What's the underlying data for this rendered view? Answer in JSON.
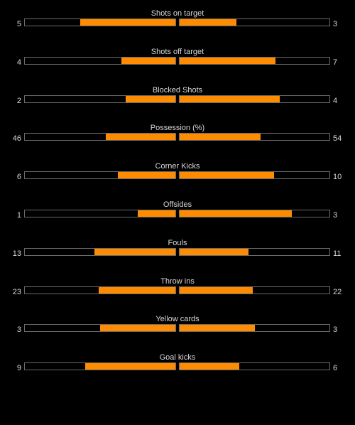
{
  "colors": {
    "background": "#000000",
    "bar_fill": "#ff8c00",
    "bar_border": "#6a6a6a",
    "text": "#d8d8d8"
  },
  "stats": [
    {
      "label": "Shots on target",
      "home": "5",
      "away": "3",
      "home_fill": 0.63,
      "away_fill": 0.38
    },
    {
      "label": "Shots off target",
      "home": "4",
      "away": "7",
      "home_fill": 0.36,
      "away_fill": 0.64
    },
    {
      "label": "Blocked Shots",
      "home": "2",
      "away": "4",
      "home_fill": 0.33,
      "away_fill": 0.67
    },
    {
      "label": "Possession (%)",
      "home": "46",
      "away": "54",
      "home_fill": 0.46,
      "away_fill": 0.54
    },
    {
      "label": "Corner Kicks",
      "home": "6",
      "away": "10",
      "home_fill": 0.38,
      "away_fill": 0.63
    },
    {
      "label": "Offsides",
      "home": "1",
      "away": "3",
      "home_fill": 0.25,
      "away_fill": 0.75
    },
    {
      "label": "Fouls",
      "home": "13",
      "away": "11",
      "home_fill": 0.54,
      "away_fill": 0.46
    },
    {
      "label": "Throw ins",
      "home": "23",
      "away": "22",
      "home_fill": 0.51,
      "away_fill": 0.49
    },
    {
      "label": "Yellow cards",
      "home": "3",
      "away": "3",
      "home_fill": 0.5,
      "away_fill": 0.5
    },
    {
      "label": "Goal kicks",
      "home": "9",
      "away": "6",
      "home_fill": 0.6,
      "away_fill": 0.4
    }
  ]
}
